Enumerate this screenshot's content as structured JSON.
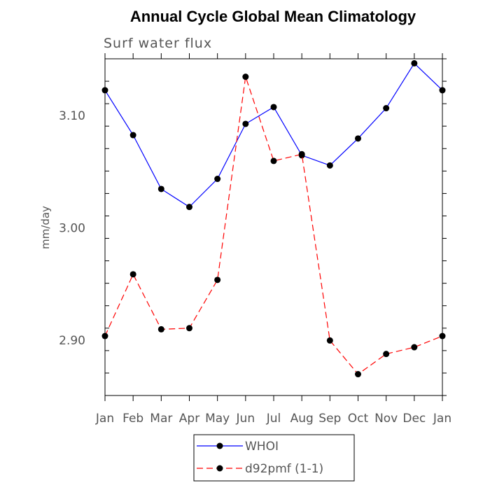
{
  "chart_data": {
    "type": "line",
    "title": "Annual Cycle Global Mean Climatology",
    "subtitle": "Surf water flux",
    "ylabel": "mm/day",
    "xlabel": "",
    "categories": [
      "Jan",
      "Feb",
      "Mar",
      "Apr",
      "May",
      "Jun",
      "Jul",
      "Aug",
      "Sep",
      "Oct",
      "Nov",
      "Dec",
      "Jan"
    ],
    "ylim": [
      2.85,
      3.15
    ],
    "yticks": [
      2.9,
      3.0,
      3.1
    ],
    "ytick_labels": [
      "2.90",
      "3.00",
      "3.10"
    ],
    "series": [
      {
        "name": "WHOI",
        "color": "#0000ff",
        "dash": "solid",
        "marker": "filled-circle",
        "values": [
          3.122,
          3.082,
          3.034,
          3.018,
          3.043,
          3.092,
          3.107,
          3.064,
          3.055,
          3.079,
          3.106,
          3.146,
          3.122
        ]
      },
      {
        "name": "d92pmf (1-1)",
        "color": "#ff0000",
        "dash": "dashed",
        "marker": "filled-circle",
        "values": [
          2.903,
          2.958,
          2.909,
          2.91,
          2.953,
          3.134,
          3.059,
          3.065,
          2.899,
          2.869,
          2.887,
          2.893,
          2.903
        ]
      }
    ],
    "legend_position": "bottom-center",
    "grid": false
  }
}
